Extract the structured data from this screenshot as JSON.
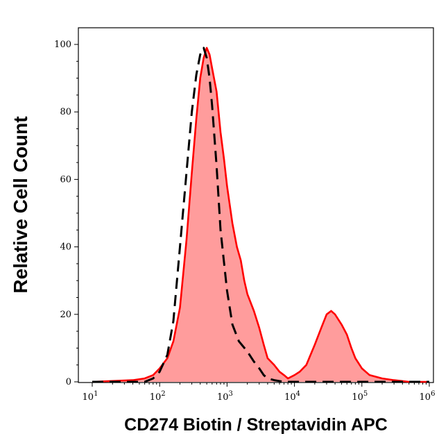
{
  "chart_data": {
    "type": "area",
    "xlabel": "CD274 Biotin / Streptavidin APC",
    "ylabel": "Relative Cell Count",
    "x_scale": "log10",
    "xlim": [
      10,
      1000000
    ],
    "ylim": [
      0,
      100
    ],
    "grid": false,
    "y_ticks": [
      0,
      20,
      40,
      60,
      80,
      100
    ],
    "y_tick_labels": [
      "0",
      "20",
      "40",
      "60",
      "80",
      "100"
    ],
    "x_ticks": [
      10,
      100,
      1000,
      10000,
      100000,
      1000000
    ],
    "x_tick_labels": [
      {
        "base": "10",
        "exp": "1"
      },
      {
        "base": "10",
        "exp": "2"
      },
      {
        "base": "10",
        "exp": "3"
      },
      {
        "base": "10",
        "exp": "4"
      },
      {
        "base": "10",
        "exp": "5"
      },
      {
        "base": "10",
        "exp": "6"
      }
    ],
    "series": [
      {
        "style": "filled-red",
        "color": "#ff0000",
        "fill": "#ff9c9c",
        "x": [
          10,
          40,
          60,
          80,
          100,
          130,
          160,
          200,
          250,
          300,
          350,
          400,
          450,
          500,
          550,
          600,
          700,
          800,
          900,
          1000,
          1200,
          1400,
          1600,
          1800,
          2000,
          2500,
          3000,
          3500,
          4000,
          5000,
          6000,
          7000,
          8000,
          10000,
          12000,
          15000,
          20000,
          25000,
          30000,
          35000,
          40000,
          50000,
          60000,
          70000,
          80000,
          100000,
          130000,
          200000,
          300000,
          500000,
          1000000
        ],
        "values": [
          0,
          0.5,
          1,
          2,
          4,
          7,
          12,
          22,
          42,
          62,
          78,
          90,
          96,
          99,
          97,
          93,
          86,
          74,
          66,
          58,
          47,
          40,
          36,
          30,
          26,
          21,
          16,
          11,
          7,
          5,
          3,
          2,
          1,
          2,
          3,
          5,
          11,
          16,
          20,
          21,
          20,
          17,
          14,
          10,
          7,
          4,
          2,
          1,
          0.5,
          0,
          0
        ]
      },
      {
        "style": "dashed-black",
        "color": "#000000",
        "x": [
          10,
          60,
          80,
          100,
          130,
          160,
          200,
          250,
          300,
          350,
          400,
          450,
          500,
          550,
          600,
          700,
          800,
          1000,
          1200,
          1500,
          2000,
          2500,
          3000,
          3500,
          4000,
          5000,
          7000,
          10000,
          100000,
          1000000
        ],
        "values": [
          0,
          0,
          1,
          3,
          8,
          18,
          40,
          62,
          80,
          91,
          97,
          99,
          96,
          90,
          82,
          64,
          45,
          27,
          17,
          12,
          9,
          6,
          4,
          2,
          1,
          0.5,
          0,
          0,
          0,
          0
        ]
      }
    ]
  }
}
